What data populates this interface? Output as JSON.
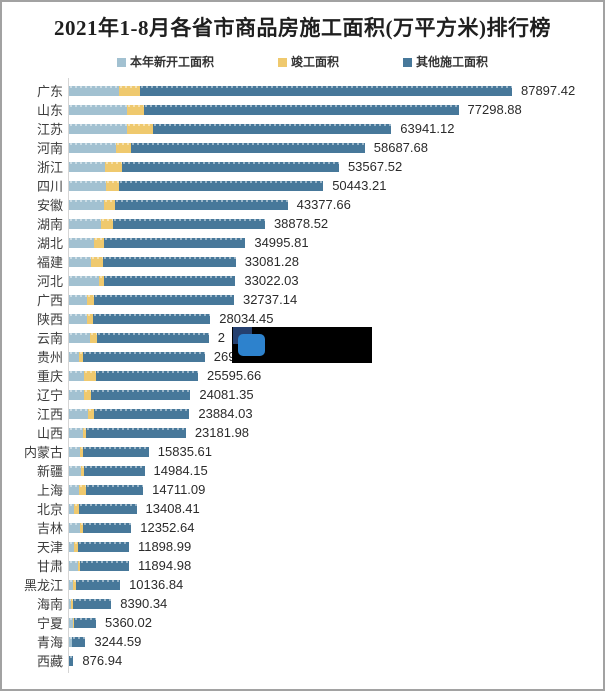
{
  "title": "2021年1-8月各省市商品房施工面积(万平方米)排行榜",
  "legend": {
    "items": [
      {
        "label": "本年新开工面积",
        "color": "#a2c1d1"
      },
      {
        "label": "竣工面积",
        "color": "#efc96e"
      },
      {
        "label": "其他施工面积",
        "color": "#47789a"
      }
    ]
  },
  "colors": {
    "background": "#ffffff",
    "frame_border": "#a2a2a2",
    "axis_line": "#d5d5d5",
    "title_text": "#1f1f1f",
    "label_text": "#3d3d3d",
    "value_text": "#2b2b2b",
    "redaction_box": "#000000",
    "redaction_logo_navy": "#25406f",
    "redaction_logo_blue": "#2d82cd"
  },
  "chart_data": {
    "type": "bar",
    "orientation": "horizontal",
    "stacked": true,
    "title": "2021年1-8月各省市商品房施工面积(万平方米)排行榜",
    "unit": "万平方米",
    "xlabel": "",
    "ylabel": "",
    "grid": false,
    "legend_position": "top",
    "categories": [
      "广东",
      "山东",
      "江苏",
      "河南",
      "浙江",
      "四川",
      "安徽",
      "湖南",
      "湖北",
      "福建",
      "河北",
      "广西",
      "陕西",
      "云南",
      "贵州",
      "重庆",
      "辽宁",
      "江西",
      "山西",
      "内蒙古",
      "新疆",
      "上海",
      "北京",
      "吉林",
      "天津",
      "甘肃",
      "黑龙江",
      "海南",
      "宁夏",
      "青海",
      "西藏"
    ],
    "series": [
      {
        "name": "本年新开工面积",
        "values": [
          9860,
          11510,
          11450,
          9320,
          7200,
          7340,
          7000,
          6350,
          5020,
          4370,
          5890,
          3570,
          3570,
          4230,
          2040,
          3040,
          3040,
          3710,
          2720,
          2180,
          2380,
          1920,
          1050,
          2180,
          1050,
          1730,
          730,
          400,
          730,
          540,
          0
        ]
      },
      {
        "name": "竣工面积",
        "values": [
          4290,
          3310,
          5160,
          2980,
          3250,
          2640,
          2180,
          2440,
          1860,
          2320,
          990,
          1450,
          1250,
          1270,
          670,
          2320,
          1330,
          1190,
          650,
          540,
          650,
          1450,
          870,
          670,
          730,
          520,
          650,
          400,
          340,
          100,
          0
        ]
      },
      {
        "name": "其他施工面积",
        "values": [
          73747.42,
          62478.88,
          47331.12,
          46387.68,
          43117.52,
          40463.21,
          34197.66,
          30088.52,
          28115.81,
          26391.28,
          26142.03,
          27717.14,
          23214.45,
          22240,
          24230,
          20235.66,
          19711.35,
          18984.03,
          19811.98,
          13115.61,
          11954.15,
          11341.09,
          11488.41,
          9502.64,
          10118.99,
          9644.98,
          8756.84,
          7590.34,
          4290.02,
          2604.59,
          876.94
        ]
      }
    ],
    "totals_labeled": [
      87897.42,
      77298.88,
      63941.12,
      58687.68,
      53567.52,
      50443.21,
      43377.66,
      38878.52,
      34995.81,
      33081.28,
      33022.03,
      32737.14,
      28034.45,
      null,
      null,
      25595.66,
      24081.35,
      23884.03,
      23181.98,
      15835.61,
      14984.15,
      14711.09,
      13408.41,
      12352.64,
      11898.99,
      11894.98,
      10136.84,
      8390.34,
      5360.02,
      3244.59,
      876.94
    ],
    "value_labels": [
      "87897.42",
      "77298.88",
      "63941.12",
      "58687.68",
      "53567.52",
      "50443.21",
      "43377.66",
      "38878.52",
      "34995.81",
      "33081.28",
      "33022.03",
      "32737.14",
      "28034.45",
      "2",
      "269",
      "25595.66",
      "24081.35",
      "23884.03",
      "23181.98",
      "15835.61",
      "14984.15",
      "14711.09",
      "13408.41",
      "12352.64",
      "11898.99",
      "11894.98",
      "10136.84",
      "8390.34",
      "5360.02",
      "3244.59",
      "876.94"
    ],
    "annotations": [
      "云南与贵州的数值标签被一个黑色矩形(含蓝色方块图标)遮挡，仅可见 \"2\" 与 \"269\""
    ]
  }
}
